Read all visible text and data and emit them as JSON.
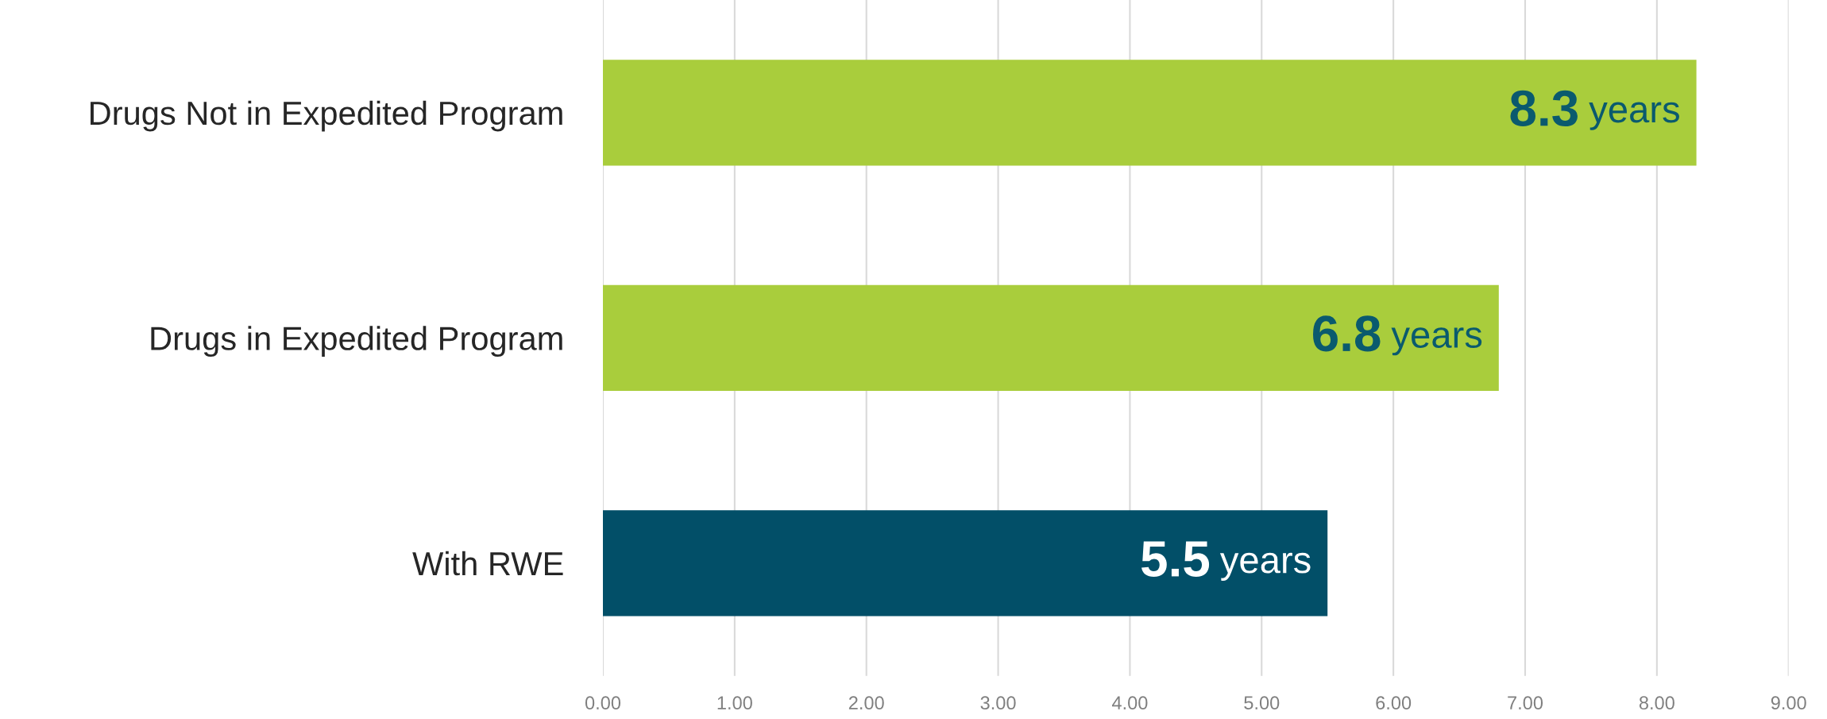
{
  "chart_data": {
    "type": "bar",
    "orientation": "horizontal",
    "categories": [
      "Drugs Not in Expedited Program",
      "Drugs in Expedited Program",
      "With RWE"
    ],
    "values": [
      8.3,
      6.8,
      5.5
    ],
    "colors": [
      "#a9cd3c",
      "#a9cd3c",
      "#024f68"
    ],
    "value_labels": [
      "8.3 years",
      "6.8 years",
      "5.5 years"
    ],
    "xlim": [
      0,
      9
    ],
    "xticks": [
      {
        "value": 0,
        "label": "0.00"
      },
      {
        "value": 1,
        "label": "1.00"
      },
      {
        "value": 2,
        "label": "2.00"
      },
      {
        "value": 3,
        "label": "3.00"
      },
      {
        "value": 4,
        "label": "4.00"
      },
      {
        "value": 5,
        "label": "5.00"
      },
      {
        "value": 6,
        "label": "6.00"
      },
      {
        "value": 7,
        "label": "7.00"
      },
      {
        "value": 8,
        "label": "8.00"
      },
      {
        "value": 9,
        "label": "9.00"
      }
    ],
    "grid": "x"
  }
}
